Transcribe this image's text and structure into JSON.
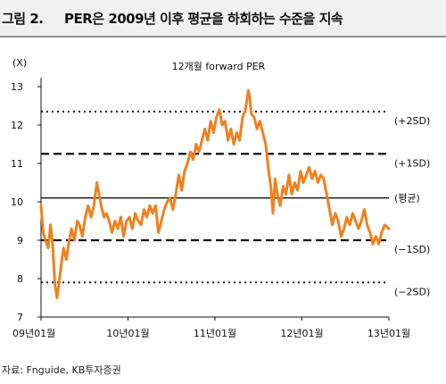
{
  "figure": {
    "label": "그림 2.",
    "title": "PER은 2009년 이후 평균을 하회하는 수준을 지속"
  },
  "source": "자료:  Fnguide, KB투자증권",
  "chart_data": {
    "type": "line",
    "title": "12개월 forward PER",
    "ylabel": "(X)",
    "xlabel": "",
    "ylim": [
      7,
      13
    ],
    "y_ticks": [
      7,
      8,
      9,
      10,
      11,
      12,
      13
    ],
    "x_range": [
      0,
      48
    ],
    "x_ticks": [
      {
        "x": 0,
        "label": "09년01월"
      },
      {
        "x": 12,
        "label": "10년01월"
      },
      {
        "x": 24,
        "label": "11년01월"
      },
      {
        "x": 36,
        "label": "12년01월"
      },
      {
        "x": 48,
        "label": "13년01월"
      }
    ],
    "grid": false,
    "reference_lines": [
      {
        "label": "(+2SD)",
        "value": 12.35,
        "style": "dotted"
      },
      {
        "label": "(+1SD)",
        "value": 11.25,
        "style": "dashed"
      },
      {
        "label": "(평균)",
        "value": 10.1,
        "style": "solid"
      },
      {
        "label": "(−1SD)",
        "value": 9.0,
        "style": "dashed"
      },
      {
        "label": "(−2SD)",
        "value": 7.9,
        "style": "dotted"
      }
    ],
    "series": [
      {
        "color": "#f0801e",
        "points": [
          [
            0.0,
            9.9
          ],
          [
            0.3,
            9.2
          ],
          [
            0.6,
            9.0
          ],
          [
            1.0,
            8.8
          ],
          [
            1.3,
            9.4
          ],
          [
            1.6,
            8.9
          ],
          [
            1.9,
            7.9
          ],
          [
            2.2,
            7.5
          ],
          [
            2.5,
            7.9
          ],
          [
            2.8,
            8.4
          ],
          [
            3.1,
            8.8
          ],
          [
            3.5,
            8.5
          ],
          [
            3.8,
            8.9
          ],
          [
            4.2,
            9.3
          ],
          [
            4.6,
            9.0
          ],
          [
            5.0,
            9.5
          ],
          [
            5.3,
            9.4
          ],
          [
            5.7,
            9.1
          ],
          [
            6.1,
            9.6
          ],
          [
            6.5,
            9.9
          ],
          [
            6.9,
            9.6
          ],
          [
            7.3,
            9.9
          ],
          [
            7.7,
            10.5
          ],
          [
            8.0,
            10.2
          ],
          [
            8.3,
            9.9
          ],
          [
            8.7,
            9.6
          ],
          [
            9.0,
            9.7
          ],
          [
            9.4,
            9.5
          ],
          [
            9.8,
            9.2
          ],
          [
            10.2,
            9.5
          ],
          [
            10.6,
            9.3
          ],
          [
            11.0,
            9.6
          ],
          [
            11.4,
            9.1
          ],
          [
            11.8,
            9.5
          ],
          [
            12.2,
            9.6
          ],
          [
            12.6,
            9.3
          ],
          [
            13.0,
            9.7
          ],
          [
            13.4,
            9.5
          ],
          [
            13.8,
            9.4
          ],
          [
            14.2,
            9.8
          ],
          [
            14.6,
            9.6
          ],
          [
            15.0,
            9.9
          ],
          [
            15.4,
            9.7
          ],
          [
            15.8,
            9.9
          ],
          [
            16.2,
            9.2
          ],
          [
            16.6,
            9.5
          ],
          [
            17.0,
            9.8
          ],
          [
            17.4,
            10.0
          ],
          [
            17.8,
            10.1
          ],
          [
            18.2,
            9.8
          ],
          [
            18.6,
            10.2
          ],
          [
            19.0,
            10.7
          ],
          [
            19.4,
            10.3
          ],
          [
            19.8,
            10.8
          ],
          [
            20.2,
            11.0
          ],
          [
            20.6,
            11.3
          ],
          [
            21.0,
            11.1
          ],
          [
            21.4,
            11.5
          ],
          [
            21.8,
            11.3
          ],
          [
            22.2,
            11.6
          ],
          [
            22.6,
            11.9
          ],
          [
            23.0,
            11.6
          ],
          [
            23.4,
            12.1
          ],
          [
            23.8,
            11.8
          ],
          [
            24.2,
            12.2
          ],
          [
            24.6,
            12.4
          ],
          [
            25.0,
            12.0
          ],
          [
            25.4,
            12.1
          ],
          [
            25.8,
            11.6
          ],
          [
            26.2,
            11.9
          ],
          [
            26.6,
            11.5
          ],
          [
            27.0,
            11.8
          ],
          [
            27.4,
            11.6
          ],
          [
            27.8,
            12.2
          ],
          [
            28.2,
            12.4
          ],
          [
            28.6,
            12.9
          ],
          [
            28.8,
            12.7
          ],
          [
            29.0,
            12.3
          ],
          [
            29.4,
            12.2
          ],
          [
            29.8,
            11.9
          ],
          [
            30.2,
            12.1
          ],
          [
            30.6,
            11.8
          ],
          [
            31.0,
            11.5
          ],
          [
            31.4,
            10.8
          ],
          [
            31.7,
            10.4
          ],
          [
            32.0,
            9.7
          ],
          [
            32.3,
            10.6
          ],
          [
            32.6,
            10.2
          ],
          [
            33.0,
            9.9
          ],
          [
            33.4,
            10.4
          ],
          [
            33.8,
            10.2
          ],
          [
            34.2,
            10.7
          ],
          [
            34.6,
            10.2
          ],
          [
            35.0,
            10.5
          ],
          [
            35.4,
            10.3
          ],
          [
            35.8,
            10.8
          ],
          [
            36.2,
            10.5
          ],
          [
            36.6,
            10.7
          ],
          [
            37.0,
            10.9
          ],
          [
            37.4,
            10.6
          ],
          [
            37.8,
            10.8
          ],
          [
            38.2,
            10.5
          ],
          [
            38.6,
            10.7
          ],
          [
            39.0,
            10.6
          ],
          [
            39.4,
            10.2
          ],
          [
            39.8,
            9.8
          ],
          [
            40.2,
            9.4
          ],
          [
            40.6,
            9.7
          ],
          [
            41.0,
            9.5
          ],
          [
            41.4,
            9.1
          ],
          [
            41.8,
            9.3
          ],
          [
            42.2,
            9.6
          ],
          [
            42.6,
            9.4
          ],
          [
            43.0,
            9.7
          ],
          [
            43.4,
            9.5
          ],
          [
            43.8,
            9.3
          ],
          [
            44.2,
            9.5
          ],
          [
            44.6,
            9.8
          ],
          [
            45.0,
            9.4
          ],
          [
            45.4,
            9.2
          ],
          [
            45.8,
            8.9
          ],
          [
            46.2,
            9.1
          ],
          [
            46.6,
            8.9
          ],
          [
            47.0,
            9.2
          ],
          [
            47.4,
            9.4
          ],
          [
            48.0,
            9.3
          ]
        ]
      }
    ]
  }
}
